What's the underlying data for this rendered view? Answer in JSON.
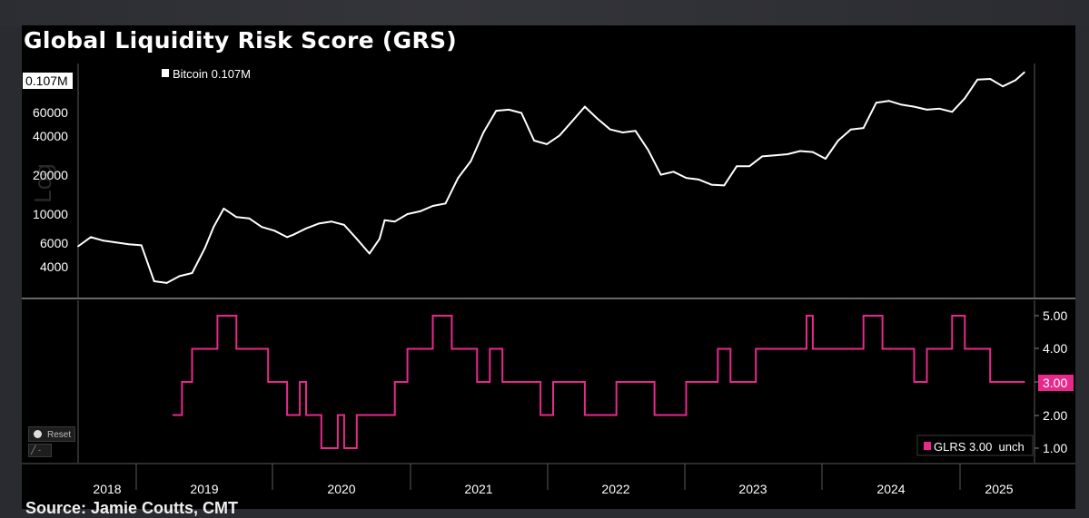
{
  "title": "Global Liquidity Risk Score (GRS)",
  "source": "Source: Jamie Coutts, CMT",
  "controls": {
    "reset_label": "Reset",
    "mini_label": "-"
  },
  "top_panel": {
    "legend": "Bitcoin 0.107M",
    "last_value_tag": "0.107M",
    "axis_label": "Log",
    "y_ticks": [
      "60000",
      "40000",
      "20000",
      "10000",
      "6000",
      "4000"
    ]
  },
  "bottom_panel": {
    "legend": "GLRS 3.00  unch",
    "last_value_tag": "3.00",
    "y_ticks": [
      "5.00",
      "4.00",
      "2.00",
      "1.00"
    ]
  },
  "x_ticks": [
    "2018",
    "2019",
    "2020",
    "2021",
    "2022",
    "2023",
    "2024",
    "2025"
  ],
  "colors": {
    "bitcoin": "#ffffff",
    "glrs": "#e8298c",
    "background": "#000000",
    "grid": "#5a5a5a"
  },
  "chart_data": [
    {
      "type": "line",
      "title": "",
      "ylabel": "Log",
      "log_scale": true,
      "ylim": [
        2800,
        120000
      ],
      "xlim": [
        2017.8,
        2025.35
      ],
      "series": [
        {
          "name": "Bitcoin",
          "x": [
            2017.8,
            2017.9,
            2018.0,
            2018.1,
            2018.2,
            2018.3,
            2018.4,
            2018.5,
            2018.6,
            2018.7,
            2018.8,
            2018.87,
            2018.95,
            2019.05,
            2019.15,
            2019.25,
            2019.35,
            2019.45,
            2019.5,
            2019.6,
            2019.7,
            2019.8,
            2019.9,
            2020.0,
            2020.1,
            2020.18,
            2020.22,
            2020.3,
            2020.4,
            2020.5,
            2020.6,
            2020.7,
            2020.8,
            2020.9,
            2021.0,
            2021.1,
            2021.2,
            2021.3,
            2021.4,
            2021.5,
            2021.6,
            2021.7,
            2021.8,
            2021.9,
            2022.0,
            2022.1,
            2022.2,
            2022.3,
            2022.4,
            2022.5,
            2022.6,
            2022.7,
            2022.8,
            2022.9,
            2023.0,
            2023.1,
            2023.2,
            2023.3,
            2023.4,
            2023.5,
            2023.6,
            2023.7,
            2023.8,
            2023.9,
            2024.0,
            2024.1,
            2024.2,
            2024.3,
            2024.4,
            2024.5,
            2024.6,
            2024.7,
            2024.8,
            2024.9,
            2025.0,
            2025.1,
            2025.2,
            2025.27
          ],
          "values": [
            6200,
            7200,
            6800,
            6600,
            6400,
            6300,
            3500,
            3400,
            3800,
            4000,
            6000,
            8500,
            11500,
            10000,
            9800,
            8500,
            8000,
            7200,
            7500,
            8300,
            9000,
            9300,
            8800,
            7000,
            5500,
            7000,
            9500,
            9300,
            10500,
            11000,
            12000,
            12500,
            19000,
            25000,
            40000,
            57000,
            58000,
            55000,
            35000,
            33000,
            38000,
            48000,
            61000,
            50000,
            42000,
            40000,
            41000,
            30000,
            20000,
            21000,
            19000,
            18500,
            17000,
            16800,
            23000,
            23000,
            27000,
            27500,
            28000,
            29500,
            29000,
            26000,
            35000,
            42000,
            43000,
            65000,
            67000,
            63000,
            61000,
            58000,
            59000,
            56000,
            70000,
            95000,
            96000,
            85000,
            94000,
            107000
          ]
        }
      ]
    },
    {
      "type": "line",
      "title": "",
      "ylim": [
        0.8,
        5.2
      ],
      "xlim": [
        2017.8,
        2025.35
      ],
      "series": [
        {
          "name": "GLRS",
          "step": true,
          "x": [
            2018.55,
            2018.62,
            2018.7,
            2018.9,
            2019.05,
            2019.3,
            2019.45,
            2019.55,
            2019.6,
            2019.72,
            2019.85,
            2019.9,
            2020.0,
            2020.3,
            2020.4,
            2020.6,
            2020.75,
            2020.85,
            2020.95,
            2021.05,
            2021.15,
            2021.3,
            2021.45,
            2021.55,
            2021.8,
            2022.05,
            2022.35,
            2022.6,
            2022.85,
            2022.95,
            2023.15,
            2023.3,
            2023.55,
            2023.6,
            2023.75,
            2024.0,
            2024.15,
            2024.25,
            2024.4,
            2024.5,
            2024.7,
            2024.8,
            2025.0,
            2025.1,
            2025.27
          ],
          "values": [
            2,
            3,
            4,
            5,
            4,
            3,
            2,
            3,
            2,
            1,
            2,
            1,
            2,
            3,
            4,
            5,
            4,
            4,
            3,
            4,
            3,
            3,
            2,
            3,
            2,
            3,
            2,
            3,
            4,
            3,
            4,
            4,
            5,
            4,
            4,
            5,
            4,
            4,
            3,
            4,
            5,
            4,
            3,
            3,
            3
          ]
        }
      ]
    }
  ]
}
